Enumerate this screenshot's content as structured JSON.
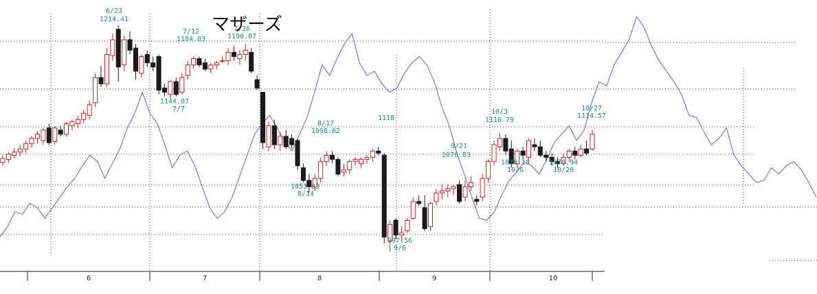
{
  "chart_data": {
    "type": "candlestick",
    "title": "マザーズ",
    "x_tick_labels": [
      "6",
      "7",
      "8",
      "9",
      "10"
    ],
    "y_range": [
      980,
      1230
    ],
    "grid": "dotted-horizontal-and-month-separators",
    "colors": {
      "up": "#d42020",
      "down": "#1a1a1a",
      "comparison_line": "#5566dd",
      "annotation": "#1a8a8a",
      "grid": "#2a3aaa"
    },
    "annotations": [
      {
        "date": "6/23",
        "value": "1214.41",
        "kind": "high"
      },
      {
        "date": "7/12",
        "value": "1184.03",
        "kind": "high"
      },
      {
        "date": "7/26",
        "value": "1196.07",
        "kind": "high"
      },
      {
        "date": "7/7",
        "value": "1144.07",
        "kind": "low"
      },
      {
        "date": "8/17",
        "value": "1098.62",
        "kind": "high"
      },
      {
        "date": "8/14",
        "value": "1053.83",
        "kind": "low"
      },
      {
        "date": "9/6",
        "value": "997.56",
        "kind": "low"
      },
      {
        "date": "9/21",
        "value": "1076.83",
        "kind": "high"
      },
      {
        "date": "10/3",
        "value": "1110.79",
        "kind": "high"
      },
      {
        "date": "10/6",
        "value": "1078.15",
        "kind": "low"
      },
      {
        "date": "10/20",
        "value": "1078.94",
        "kind": "low"
      },
      {
        "date": "10/27",
        "value": "1114.57",
        "kind": "high"
      },
      {
        "date": "",
        "value": "1118",
        "kind": "partial"
      }
    ],
    "candles": [
      {
        "o": 1083,
        "h": 1090,
        "l": 1080,
        "c": 1087
      },
      {
        "o": 1086,
        "h": 1093,
        "l": 1083,
        "c": 1091
      },
      {
        "o": 1090,
        "h": 1097,
        "l": 1087,
        "c": 1093
      },
      {
        "o": 1093,
        "h": 1100,
        "l": 1089,
        "c": 1096
      },
      {
        "o": 1096,
        "h": 1104,
        "l": 1092,
        "c": 1101
      },
      {
        "o": 1101,
        "h": 1108,
        "l": 1097,
        "c": 1106
      },
      {
        "o": 1106,
        "h": 1113,
        "l": 1101,
        "c": 1110
      },
      {
        "o": 1104,
        "h": 1116,
        "l": 1100,
        "c": 1114
      },
      {
        "o": 1116,
        "h": 1120,
        "l": 1100,
        "c": 1102
      },
      {
        "o": 1103,
        "h": 1118,
        "l": 1100,
        "c": 1116
      },
      {
        "o": 1114,
        "h": 1118,
        "l": 1108,
        "c": 1110
      },
      {
        "o": 1110,
        "h": 1122,
        "l": 1108,
        "c": 1120
      },
      {
        "o": 1118,
        "h": 1124,
        "l": 1114,
        "c": 1122
      },
      {
        "o": 1120,
        "h": 1128,
        "l": 1116,
        "c": 1124
      },
      {
        "o": 1124,
        "h": 1133,
        "l": 1120,
        "c": 1130
      },
      {
        "o": 1128,
        "h": 1142,
        "l": 1124,
        "c": 1138
      },
      {
        "o": 1140,
        "h": 1168,
        "l": 1136,
        "c": 1164
      },
      {
        "o": 1164,
        "h": 1175,
        "l": 1155,
        "c": 1158
      },
      {
        "o": 1158,
        "h": 1192,
        "l": 1155,
        "c": 1186
      },
      {
        "o": 1185,
        "h": 1206,
        "l": 1180,
        "c": 1200
      },
      {
        "o": 1210,
        "h": 1214,
        "l": 1160,
        "c": 1174
      },
      {
        "o": 1176,
        "h": 1204,
        "l": 1170,
        "c": 1200
      },
      {
        "o": 1200,
        "h": 1208,
        "l": 1186,
        "c": 1190
      },
      {
        "o": 1192,
        "h": 1196,
        "l": 1162,
        "c": 1170
      },
      {
        "o": 1168,
        "h": 1186,
        "l": 1164,
        "c": 1184
      },
      {
        "o": 1186,
        "h": 1190,
        "l": 1174,
        "c": 1178
      },
      {
        "o": 1178,
        "h": 1184,
        "l": 1170,
        "c": 1174
      },
      {
        "o": 1184,
        "h": 1186,
        "l": 1148,
        "c": 1152
      },
      {
        "o": 1154,
        "h": 1158,
        "l": 1146,
        "c": 1150
      },
      {
        "o": 1148,
        "h": 1162,
        "l": 1144,
        "c": 1160
      },
      {
        "o": 1160,
        "h": 1164,
        "l": 1146,
        "c": 1148
      },
      {
        "o": 1150,
        "h": 1168,
        "l": 1148,
        "c": 1164
      },
      {
        "o": 1166,
        "h": 1180,
        "l": 1162,
        "c": 1176
      },
      {
        "o": 1176,
        "h": 1184,
        "l": 1172,
        "c": 1182
      },
      {
        "o": 1182,
        "h": 1184,
        "l": 1174,
        "c": 1176
      },
      {
        "o": 1178,
        "h": 1182,
        "l": 1170,
        "c": 1172
      },
      {
        "o": 1172,
        "h": 1178,
        "l": 1168,
        "c": 1176
      },
      {
        "o": 1176,
        "h": 1180,
        "l": 1172,
        "c": 1178
      },
      {
        "o": 1180,
        "h": 1184,
        "l": 1178,
        "c": 1180
      },
      {
        "o": 1180,
        "h": 1192,
        "l": 1176,
        "c": 1188
      },
      {
        "o": 1188,
        "h": 1194,
        "l": 1180,
        "c": 1184
      },
      {
        "o": 1182,
        "h": 1190,
        "l": 1176,
        "c": 1186
      },
      {
        "o": 1186,
        "h": 1196,
        "l": 1180,
        "c": 1190
      },
      {
        "o": 1188,
        "h": 1192,
        "l": 1168,
        "c": 1170
      },
      {
        "o": 1162,
        "h": 1166,
        "l": 1152,
        "c": 1154
      },
      {
        "o": 1150,
        "h": 1150,
        "l": 1096,
        "c": 1102
      },
      {
        "o": 1098,
        "h": 1122,
        "l": 1094,
        "c": 1118
      },
      {
        "o": 1118,
        "h": 1124,
        "l": 1096,
        "c": 1100
      },
      {
        "o": 1100,
        "h": 1112,
        "l": 1094,
        "c": 1108
      },
      {
        "o": 1108,
        "h": 1114,
        "l": 1096,
        "c": 1098
      },
      {
        "o": 1106,
        "h": 1110,
        "l": 1096,
        "c": 1100
      },
      {
        "o": 1104,
        "h": 1106,
        "l": 1076,
        "c": 1080
      },
      {
        "o": 1078,
        "h": 1082,
        "l": 1064,
        "c": 1066
      },
      {
        "o": 1066,
        "h": 1072,
        "l": 1054,
        "c": 1060
      },
      {
        "o": 1060,
        "h": 1072,
        "l": 1056,
        "c": 1068
      },
      {
        "o": 1068,
        "h": 1088,
        "l": 1064,
        "c": 1084
      },
      {
        "o": 1084,
        "h": 1094,
        "l": 1080,
        "c": 1090
      },
      {
        "o": 1090,
        "h": 1094,
        "l": 1082,
        "c": 1086
      },
      {
        "o": 1086,
        "h": 1088,
        "l": 1070,
        "c": 1072
      },
      {
        "o": 1074,
        "h": 1082,
        "l": 1070,
        "c": 1076
      },
      {
        "o": 1076,
        "h": 1086,
        "l": 1072,
        "c": 1084
      },
      {
        "o": 1084,
        "h": 1088,
        "l": 1080,
        "c": 1086
      },
      {
        "o": 1082,
        "h": 1088,
        "l": 1078,
        "c": 1086
      },
      {
        "o": 1086,
        "h": 1090,
        "l": 1082,
        "c": 1088
      },
      {
        "o": 1088,
        "h": 1096,
        "l": 1084,
        "c": 1094
      },
      {
        "o": 1094,
        "h": 1098,
        "l": 1090,
        "c": 1092
      },
      {
        "o": 1090,
        "h": 1092,
        "l": 1006,
        "c": 1012
      },
      {
        "o": 1008,
        "h": 1028,
        "l": 998,
        "c": 1024
      },
      {
        "o": 1028,
        "h": 1030,
        "l": 1010,
        "c": 1014
      },
      {
        "o": 1014,
        "h": 1022,
        "l": 1008,
        "c": 1016
      },
      {
        "o": 1018,
        "h": 1030,
        "l": 1016,
        "c": 1028
      },
      {
        "o": 1030,
        "h": 1050,
        "l": 1028,
        "c": 1046
      },
      {
        "o": 1046,
        "h": 1052,
        "l": 1042,
        "c": 1044
      },
      {
        "o": 1040,
        "h": 1052,
        "l": 1018,
        "c": 1020
      },
      {
        "o": 1022,
        "h": 1046,
        "l": 1018,
        "c": 1044
      },
      {
        "o": 1046,
        "h": 1058,
        "l": 1042,
        "c": 1054
      },
      {
        "o": 1054,
        "h": 1062,
        "l": 1048,
        "c": 1056
      },
      {
        "o": 1056,
        "h": 1062,
        "l": 1050,
        "c": 1058
      },
      {
        "o": 1058,
        "h": 1062,
        "l": 1052,
        "c": 1060
      },
      {
        "o": 1062,
        "h": 1066,
        "l": 1044,
        "c": 1046
      },
      {
        "o": 1050,
        "h": 1066,
        "l": 1046,
        "c": 1060
      },
      {
        "o": 1060,
        "h": 1070,
        "l": 1056,
        "c": 1064
      },
      {
        "o": 1048,
        "h": 1052,
        "l": 1042,
        "c": 1046
      },
      {
        "o": 1050,
        "h": 1072,
        "l": 1046,
        "c": 1068
      },
      {
        "o": 1068,
        "h": 1086,
        "l": 1064,
        "c": 1084
      },
      {
        "o": 1084,
        "h": 1104,
        "l": 1080,
        "c": 1100
      },
      {
        "o": 1098,
        "h": 1111,
        "l": 1094,
        "c": 1106
      },
      {
        "o": 1106,
        "h": 1110,
        "l": 1090,
        "c": 1094
      },
      {
        "o": 1096,
        "h": 1104,
        "l": 1078,
        "c": 1082
      },
      {
        "o": 1082,
        "h": 1096,
        "l": 1078,
        "c": 1094
      },
      {
        "o": 1094,
        "h": 1098,
        "l": 1086,
        "c": 1090
      },
      {
        "o": 1088,
        "h": 1106,
        "l": 1084,
        "c": 1104
      },
      {
        "o": 1100,
        "h": 1106,
        "l": 1094,
        "c": 1098
      },
      {
        "o": 1098,
        "h": 1104,
        "l": 1088,
        "c": 1090
      },
      {
        "o": 1090,
        "h": 1094,
        "l": 1084,
        "c": 1088
      },
      {
        "o": 1088,
        "h": 1092,
        "l": 1080,
        "c": 1084
      },
      {
        "o": 1084,
        "h": 1088,
        "l": 1078,
        "c": 1082
      },
      {
        "o": 1082,
        "h": 1092,
        "l": 1080,
        "c": 1088
      },
      {
        "o": 1088,
        "h": 1096,
        "l": 1084,
        "c": 1094
      },
      {
        "o": 1094,
        "h": 1098,
        "l": 1086,
        "c": 1090
      },
      {
        "o": 1090,
        "h": 1100,
        "l": 1088,
        "c": 1096
      },
      {
        "o": 1096,
        "h": 1104,
        "l": 1090,
        "c": 1092
      },
      {
        "o": 1096,
        "h": 1114,
        "l": 1094,
        "c": 1110
      }
    ],
    "comparison_line": [
      1012,
      1022,
      1036,
      1034,
      1044,
      1040,
      1030,
      1040,
      1050,
      1060,
      1068,
      1080,
      1090,
      1084,
      1068,
      1082,
      1096,
      1116,
      1130,
      1150,
      1130,
      1120,
      1100,
      1078,
      1090,
      1094,
      1080,
      1060,
      1040,
      1030,
      1036,
      1050,
      1070,
      1090,
      1110,
      1120,
      1128,
      1116,
      1104,
      1094,
      1110,
      1126,
      1150,
      1176,
      1166,
      1182,
      1196,
      1206,
      1178,
      1166,
      1170,
      1158,
      1150,
      1154,
      1168,
      1178,
      1184,
      1176,
      1160,
      1136,
      1118,
      1092,
      1072,
      1050,
      1030,
      1028,
      1036,
      1052,
      1066,
      1074,
      1084,
      1080,
      1072,
      1086,
      1102,
      1110,
      1118,
      1104,
      1114,
      1140,
      1160,
      1156,
      1176,
      1188,
      1200,
      1222,
      1212,
      1194,
      1180,
      1170,
      1160,
      1148,
      1128,
      1126,
      1112,
      1100,
      1106,
      1116,
      1090,
      1080,
      1072,
      1064,
      1066,
      1078,
      1072,
      1080,
      1084,
      1076,
      1064,
      1050
    ]
  }
}
